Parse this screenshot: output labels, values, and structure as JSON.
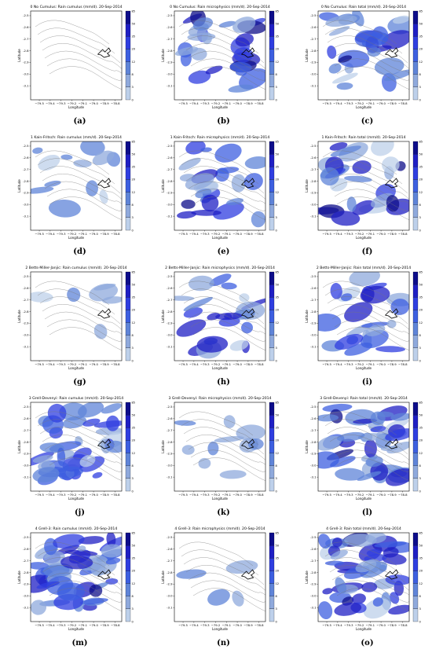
{
  "figure": {
    "axis": {
      "xlabel": "Longitude",
      "ylabel": "Latitude",
      "xticks": [
        "−79.5",
        "−79.4",
        "−79.3",
        "−79.2",
        "−79.1",
        "−79.0",
        "−78.9",
        "−78.8"
      ],
      "xtick_values": [
        -79.5,
        -79.4,
        -79.3,
        -79.2,
        -79.1,
        -79.0,
        -78.9,
        -78.8
      ],
      "yticks": [
        "-2.5",
        "-2.6",
        "-2.7",
        "-2.8",
        "-2.9",
        "-3.0",
        "-3.1"
      ],
      "ytick_values": [
        -2.5,
        -2.6,
        -2.7,
        -2.8,
        -2.9,
        -3.0,
        -3.1
      ],
      "xlim": [
        -79.58,
        -78.74
      ],
      "ylim": [
        -3.22,
        -2.46
      ]
    },
    "colorbar": {
      "levels": [
        "85",
        "50",
        "35",
        "20",
        "12",
        "8",
        "3",
        "0"
      ],
      "colors": [
        "#0d0d8a",
        "#1f1fc4",
        "#2f3ee0",
        "#3d5fe0",
        "#5f84d8",
        "#8fa9dc",
        "#bdd0ea",
        "#ffffff"
      ]
    }
  },
  "chart_data": [
    {
      "type": "heatmap",
      "title": "0 No Cumulus: Rain cumulus (mm/d). 20-Sep-2014",
      "label": "(a)",
      "variable": "cumulus"
    },
    {
      "type": "heatmap",
      "title": "0 No Cumulus: Rain microphysics (mm/d). 20-Sep-2014",
      "label": "(b)",
      "variable": "microphysics"
    },
    {
      "type": "heatmap",
      "title": "0 No Cumulus: Rain total (mm/d). 20-Sep-2014",
      "label": "(c)",
      "variable": "total"
    },
    {
      "type": "heatmap",
      "title": "1 Kain-Fritsch: Rain cumulus (mm/d). 20-Sep-2014",
      "label": "(d)",
      "variable": "cumulus"
    },
    {
      "type": "heatmap",
      "title": "1 Kain-Fritsch: Rain microphysics (mm/d). 20-Sep-2014",
      "label": "(e)",
      "variable": "microphysics"
    },
    {
      "type": "heatmap",
      "title": "1 Kain-Fritsch: Rain total (mm/d). 20-Sep-2014",
      "label": "(f)",
      "variable": "total"
    },
    {
      "type": "heatmap",
      "title": "2 Betts-Miller-Janjic: Rain cumulus (mm/d). 20-Sep-2014",
      "label": "(g)",
      "variable": "cumulus"
    },
    {
      "type": "heatmap",
      "title": "2 Betts-Miller-Janjic: Rain microphysics (mm/d). 20-Sep-2014",
      "label": "(h)",
      "variable": "microphysics"
    },
    {
      "type": "heatmap",
      "title": "2 Betts-Miller-Janjic: Rain total (mm/d). 20-Sep-2014",
      "label": "(i)",
      "variable": "total"
    },
    {
      "type": "heatmap",
      "title": "3 Grell-Devenyi: Rain cumulus (mm/d). 20-Sep-2014",
      "label": "(j)",
      "variable": "cumulus"
    },
    {
      "type": "heatmap",
      "title": "3 Grell-Devenyi: Rain microphysics (mm/d). 20-Sep-2014",
      "label": "(k)",
      "variable": "microphysics"
    },
    {
      "type": "heatmap",
      "title": "3 Grell-Devenyi: Rain total (mm/d). 20-Sep-2014",
      "label": "(l)",
      "variable": "total"
    },
    {
      "type": "heatmap",
      "title": "4 Grell-3: Rain cumulus (mm/d). 20-Sep-2014",
      "label": "(m)",
      "variable": "cumulus"
    },
    {
      "type": "heatmap",
      "title": "4 Grell-3: Rain microphysics (mm/d). 20-Sep-2014",
      "label": "(n)",
      "variable": "microphysics"
    },
    {
      "type": "heatmap",
      "title": "4 Grell-3: Rain total (mm/d). 20-Sep-2014",
      "label": "(o)",
      "variable": "total"
    }
  ]
}
